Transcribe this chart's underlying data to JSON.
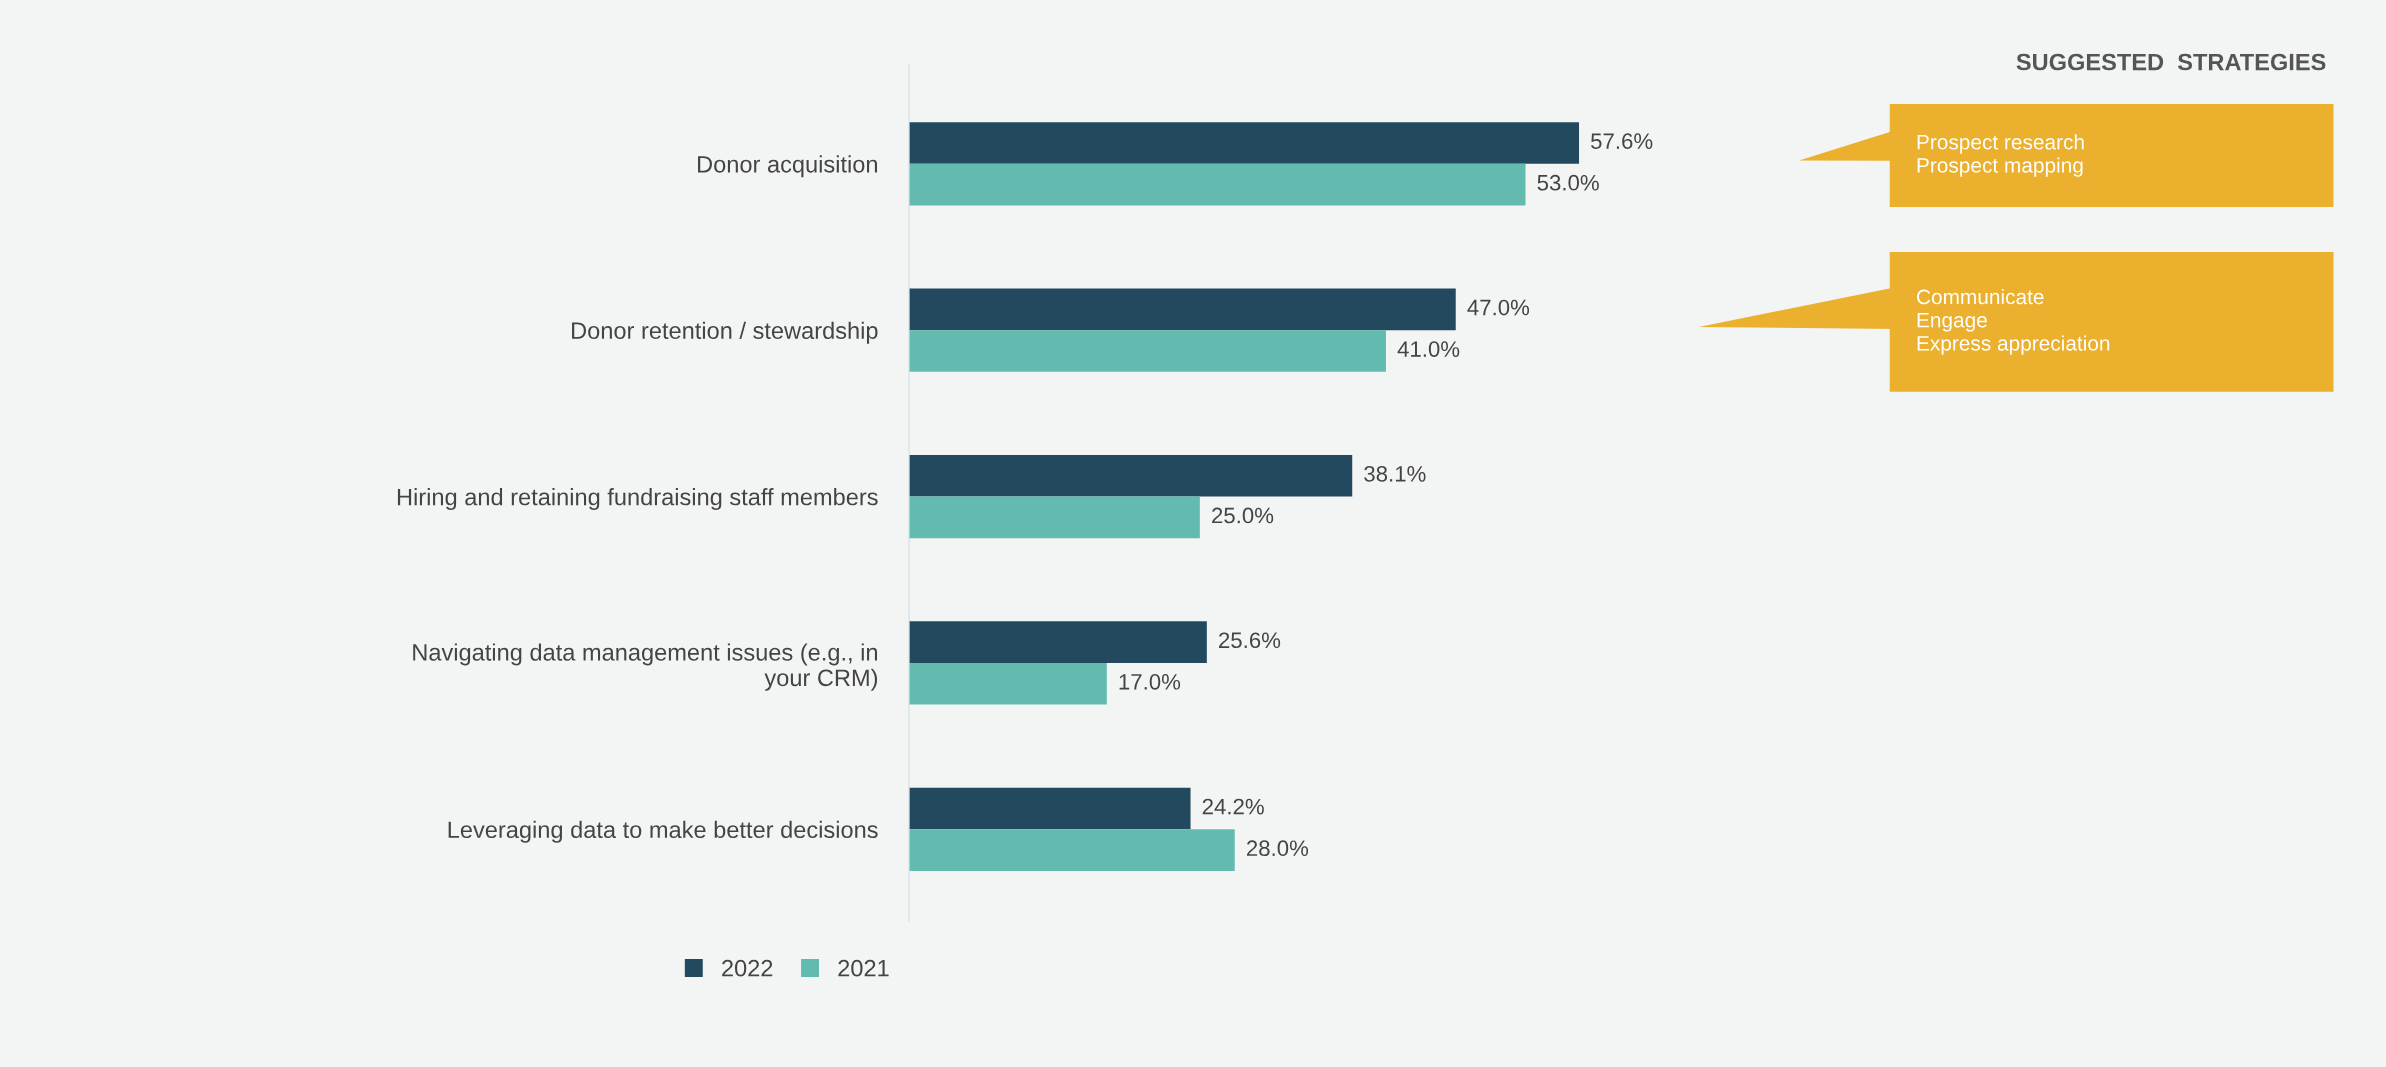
{
  "chart_data": {
    "type": "bar",
    "orientation": "horizontal",
    "categories": [
      "Donor acquisition",
      "Donor retention / stewardship",
      "Hiring and retaining fundraising staff members",
      "Navigating data management issues (e.g., in\nyour CRM)",
      "Leveraging data to make better decisions"
    ],
    "series": [
      {
        "name": "2022",
        "color": "#23495e",
        "values": [
          57.6,
          47.0,
          38.1,
          25.6,
          24.2
        ],
        "value_labels": [
          "57.6%",
          "47.0%",
          "38.1%",
          "25.6%",
          "24.2%"
        ]
      },
      {
        "name": "2021",
        "color": "#63bbb0",
        "values": [
          53.0,
          41.0,
          25.0,
          17.0,
          28.0
        ],
        "value_labels": [
          "53.0%",
          "41.0%",
          "25.0%",
          "17.0%",
          "28.0%"
        ]
      }
    ],
    "legend": "bottom",
    "grid": false,
    "annotations": [
      "SUGGESTED  STRATEGIES",
      "Prospect research\nProspect mapping",
      "Communicate\nEngage\nExpress appreciation"
    ]
  }
}
